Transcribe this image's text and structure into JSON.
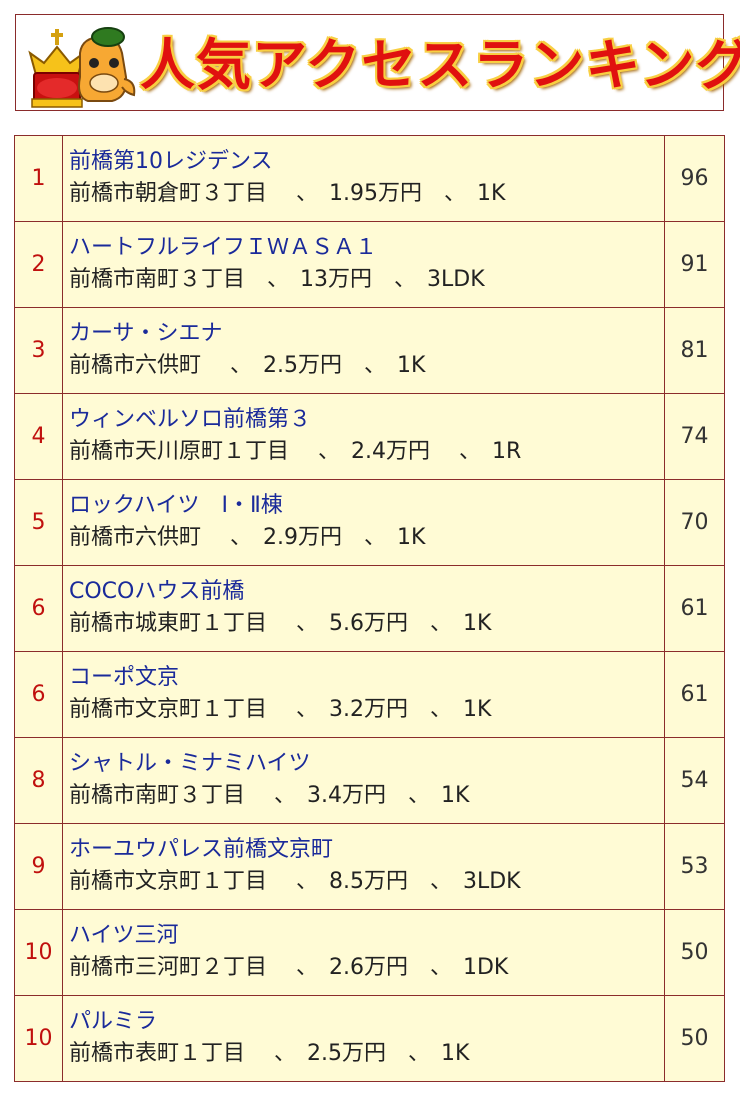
{
  "header": {
    "title": "人気アクセスランキング",
    "mascot_icon": "crowned-horse-mascot-icon"
  },
  "colors": {
    "border": "#8b2c2c",
    "table_bg": "#fffbd5",
    "rank_text": "#c0100e",
    "name_text": "#1a2a9a",
    "title_red": "#e0110f",
    "title_outline": "#f8cf43"
  },
  "rankings": [
    {
      "rank": "1",
      "name": "前橋第10レジデンス",
      "detail": "前橋市朝倉町３丁目　 、　1.95万円　、　1K",
      "score": "96"
    },
    {
      "rank": "2",
      "name": "ハートフルライフＩＷＡＳＡ１",
      "detail": "前橋市南町３丁目　、　13万円　、　3LDK",
      "score": "91"
    },
    {
      "rank": "3",
      "name": "カーサ・シエナ",
      "detail": "前橋市六供町　 、　2.5万円　、　1K",
      "score": "81"
    },
    {
      "rank": "4",
      "name": "ウィンベルソロ前橋第３",
      "detail": "前橋市天川原町１丁目　 、　2.4万円　 、　1R",
      "score": "74"
    },
    {
      "rank": "5",
      "name": "ロックハイツ　Ⅰ・Ⅱ棟",
      "detail": "前橋市六供町　 、　2.9万円　、　1K",
      "score": "70"
    },
    {
      "rank": "6",
      "name": "COCOハウス前橋",
      "detail": "前橋市城東町１丁目　 、　5.6万円　、　1K",
      "score": "61"
    },
    {
      "rank": "6",
      "name": "コーポ文京",
      "detail": "前橋市文京町１丁目　 、　3.2万円　、　1K",
      "score": "61"
    },
    {
      "rank": "8",
      "name": "シャトル・ミナミハイツ",
      "detail": "前橋市南町３丁目　 、　3.4万円　、　1K",
      "score": "54"
    },
    {
      "rank": "9",
      "name": "ホーユウパレス前橋文京町",
      "detail": "前橋市文京町１丁目　 、　8.5万円　、　3LDK",
      "score": "53"
    },
    {
      "rank": "10",
      "name": "ハイツ三河",
      "detail": "前橋市三河町２丁目　 、　2.6万円　、　1DK",
      "score": "50"
    },
    {
      "rank": "10",
      "name": "パルミラ",
      "detail": "前橋市表町１丁目　 、　2.5万円　、　1K",
      "score": "50"
    }
  ]
}
